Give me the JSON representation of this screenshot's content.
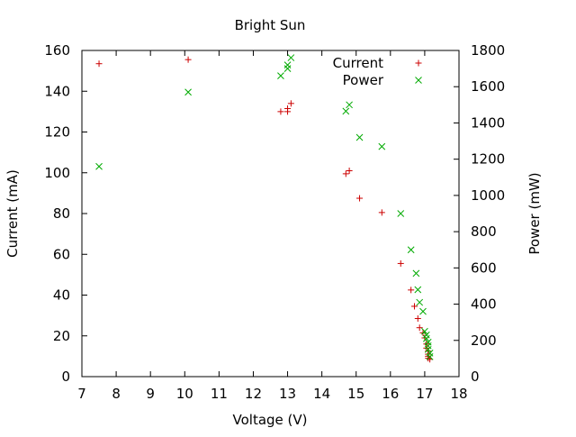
{
  "chart_data": {
    "type": "scatter",
    "title": "Bright Sun",
    "xlabel": "Voltage (V)",
    "ylabel": "Current (mA)",
    "y2label": "Power (mW)",
    "xlim": [
      7,
      18
    ],
    "ylim": [
      0,
      160
    ],
    "y2lim": [
      0,
      1800
    ],
    "xticks": [
      7,
      8,
      9,
      10,
      11,
      12,
      13,
      14,
      15,
      16,
      17,
      18
    ],
    "yticks": [
      0,
      20,
      40,
      60,
      80,
      100,
      120,
      140,
      160
    ],
    "y2ticks": [
      0,
      200,
      400,
      600,
      800,
      1000,
      1200,
      1400,
      1600,
      1800
    ],
    "grid": false,
    "legend_position": "top-right",
    "series": [
      {
        "name": "Current",
        "axis": "left",
        "marker": "plus",
        "color": "#cc0000",
        "points": [
          [
            7.5,
            153.5
          ],
          [
            10.1,
            155.5
          ],
          [
            12.8,
            130
          ],
          [
            13.0,
            131.5
          ],
          [
            13.0,
            130
          ],
          [
            13.1,
            134
          ],
          [
            14.7,
            99.5
          ],
          [
            14.8,
            101
          ],
          [
            15.1,
            87.5
          ],
          [
            15.75,
            80.5
          ],
          [
            16.3,
            55.5
          ],
          [
            16.6,
            42.5
          ],
          [
            16.7,
            34.5
          ],
          [
            16.8,
            28.5
          ],
          [
            16.85,
            24
          ],
          [
            16.95,
            21.5
          ],
          [
            17.0,
            19
          ],
          [
            17.05,
            16
          ],
          [
            17.05,
            14
          ],
          [
            17.1,
            12.5
          ],
          [
            17.1,
            11
          ],
          [
            17.1,
            10
          ],
          [
            17.1,
            9
          ],
          [
            17.15,
            8.5
          ]
        ]
      },
      {
        "name": "Power",
        "axis": "right",
        "marker": "cross",
        "color": "#00aa00",
        "points": [
          [
            7.5,
            1160
          ],
          [
            10.1,
            1570
          ],
          [
            12.8,
            1660
          ],
          [
            13.0,
            1700
          ],
          [
            13.0,
            1720
          ],
          [
            13.1,
            1760
          ],
          [
            14.7,
            1465
          ],
          [
            14.8,
            1500
          ],
          [
            15.1,
            1320
          ],
          [
            15.75,
            1270
          ],
          [
            16.3,
            900
          ],
          [
            16.6,
            700
          ],
          [
            16.75,
            570
          ],
          [
            16.8,
            480
          ],
          [
            16.85,
            410
          ],
          [
            16.95,
            360
          ],
          [
            17.0,
            250
          ],
          [
            17.05,
            230
          ],
          [
            17.05,
            210
          ],
          [
            17.1,
            190
          ],
          [
            17.1,
            170
          ],
          [
            17.1,
            150
          ],
          [
            17.15,
            130
          ],
          [
            17.15,
            110
          ]
        ]
      }
    ]
  }
}
